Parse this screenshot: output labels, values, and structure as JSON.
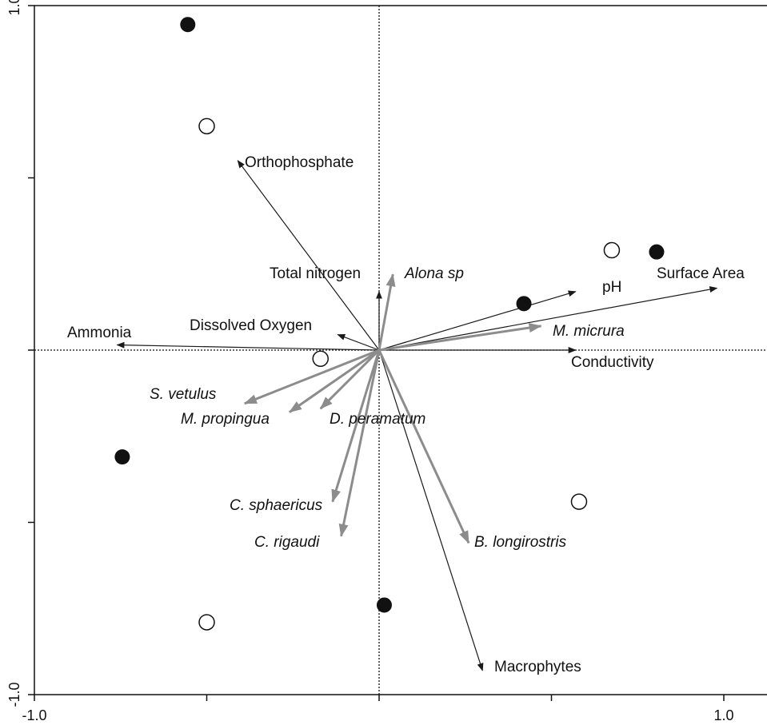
{
  "chart_data": {
    "type": "scatter",
    "title": "",
    "xlabel": "",
    "ylabel": "",
    "xlim": [
      -1.0,
      1.0
    ],
    "ylim": [
      -1.0,
      1.0
    ],
    "x_tick_labels": [
      "-1.0",
      "",
      "",
      "",
      "1.0"
    ],
    "x_tick_values": [
      -1.0,
      -0.5,
      0.0,
      0.5,
      1.0
    ],
    "y_tick_labels": [
      "-1.0",
      "",
      "",
      "",
      "1.0"
    ],
    "y_tick_values": [
      -1.0,
      -0.5,
      0.0,
      0.5,
      1.0
    ],
    "grid": false,
    "zero_lines": "dotted",
    "environmental_vectors": [
      {
        "label": "Orthophosphate",
        "x": -0.41,
        "y": 0.55
      },
      {
        "label": "Total nitrogen",
        "x": 0.0,
        "y": 0.17
      },
      {
        "label": "Dissolved Oxygen",
        "x": -0.12,
        "y": 0.045
      },
      {
        "label": "Ammonia",
        "x": -0.76,
        "y": 0.015
      },
      {
        "label": "pH",
        "x": 0.57,
        "y": 0.17
      },
      {
        "label": "Surface Area",
        "x": 0.98,
        "y": 0.18
      },
      {
        "label": "Conductivity",
        "x": 0.57,
        "y": 0.0
      },
      {
        "label": "Macrophytes",
        "x": 0.3,
        "y": -0.93
      }
    ],
    "species_vectors": [
      {
        "label": "Alona sp",
        "x": 0.04,
        "y": 0.22
      },
      {
        "label": "M. micrura",
        "x": 0.47,
        "y": 0.07
      },
      {
        "label": "S. vetulus",
        "x": -0.39,
        "y": -0.155
      },
      {
        "label": "M. propingua",
        "x": -0.26,
        "y": -0.18
      },
      {
        "label": "D. peramatum",
        "x": -0.17,
        "y": -0.17
      },
      {
        "label": "C. sphaericus",
        "x": -0.135,
        "y": -0.44
      },
      {
        "label": "C. rigaudi",
        "x": -0.11,
        "y": -0.54
      },
      {
        "label": "B. longirostris",
        "x": 0.26,
        "y": -0.56
      }
    ],
    "sites_filled": [
      [
        -0.555,
        0.945
      ],
      [
        0.42,
        0.135
      ],
      [
        0.805,
        0.285
      ],
      [
        -0.745,
        -0.31
      ],
      [
        0.015,
        -0.74
      ]
    ],
    "sites_open": [
      [
        -0.5,
        0.65
      ],
      [
        0.675,
        0.29
      ],
      [
        -0.17,
        -0.025
      ],
      [
        0.58,
        -0.44
      ],
      [
        -0.5,
        -0.79
      ]
    ],
    "colors": {
      "env_arrow": "#1a1a1a",
      "species_arrow": "#8c8c8c",
      "filled_site": "#111111",
      "open_site_stroke": "#111111"
    }
  }
}
